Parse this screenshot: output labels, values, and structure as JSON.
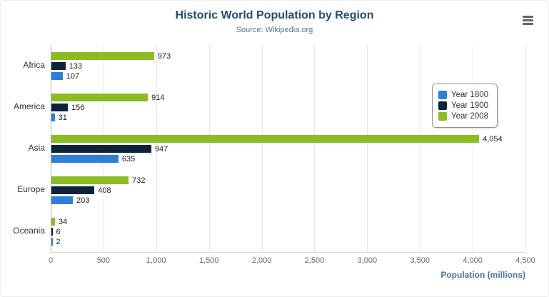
{
  "chart_data": {
    "type": "bar",
    "title": "Historic World Population by Region",
    "subtitle": "Source: Wikipedia.org",
    "categories": [
      "Africa",
      "America",
      "Asia",
      "Europe",
      "Oceania"
    ],
    "series": [
      {
        "name": "Year 1800",
        "color": "#2f7ed8",
        "values": [
          107,
          31,
          635,
          203,
          2
        ]
      },
      {
        "name": "Year 1900",
        "color": "#0d233a",
        "values": [
          133,
          156,
          947,
          408,
          6
        ]
      },
      {
        "name": "Year 2008",
        "color": "#8bbc21",
        "values": [
          973,
          914,
          4054,
          732,
          34
        ]
      }
    ],
    "data_labels": [
      [
        "107",
        "31",
        "635",
        "203",
        "2"
      ],
      [
        "133",
        "156",
        "947",
        "408",
        "6"
      ],
      [
        "973",
        "914",
        "4,054",
        "732",
        "34"
      ]
    ],
    "xlabel": "Population (millions)",
    "xlim": [
      0,
      4500
    ],
    "xticks": [
      0,
      500,
      1000,
      1500,
      2000,
      2500,
      3000,
      3500,
      4000,
      4500
    ],
    "tick_labels": [
      "0",
      "500",
      "1,000",
      "1,500",
      "2,000",
      "2,500",
      "3,000",
      "3,500",
      "4,000",
      "4,500"
    ],
    "legend_position": "right",
    "grid": true
  },
  "icons": {
    "export_menu": "hamburger"
  }
}
